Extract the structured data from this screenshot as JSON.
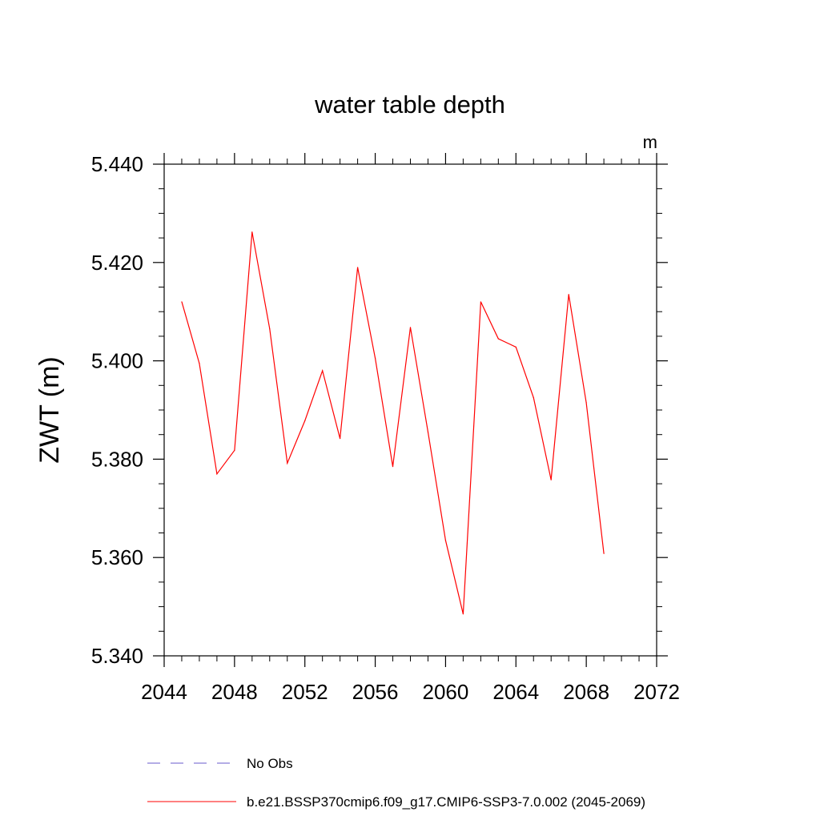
{
  "chart_data": {
    "type": "line",
    "title": "water table depth",
    "units": "m",
    "xlabel": "",
    "ylabel": "ZWT  (m)",
    "xlim": [
      2044,
      2072
    ],
    "ylim": [
      5.34,
      5.44
    ],
    "xticks": [
      2044,
      2048,
      2052,
      2056,
      2060,
      2064,
      2068,
      2072
    ],
    "xtick_labels": [
      "2044",
      "2048",
      "2052",
      "2056",
      "2060",
      "2064",
      "2068",
      "2072"
    ],
    "yticks": [
      5.34,
      5.36,
      5.38,
      5.4,
      5.42,
      5.44
    ],
    "ytick_labels": [
      "5.340",
      "5.360",
      "5.380",
      "5.400",
      "5.420",
      "5.440"
    ],
    "grid": false,
    "legend_position": "bottom",
    "series": [
      {
        "name": "b.e21.BSSP370cmip6.f09_g17.CMIP6-SSP3-7.0.002 (2045-2069)",
        "color": "#ff0000",
        "x": [
          2045,
          2046,
          2047,
          2048,
          2049,
          2050,
          2051,
          2052,
          2053,
          2054,
          2055,
          2056,
          2057,
          2058,
          2059,
          2060,
          2061,
          2062,
          2063,
          2064,
          2065,
          2066,
          2067,
          2068,
          2069
        ],
        "y": [
          5.412,
          5.3995,
          5.377,
          5.3818,
          5.4262,
          5.4065,
          5.3792,
          5.3878,
          5.398,
          5.3842,
          5.419,
          5.4005,
          5.3785,
          5.4068,
          5.3855,
          5.3635,
          5.3485,
          5.412,
          5.4045,
          5.4028,
          5.3925,
          5.3758,
          5.4135,
          5.3915,
          5.3608
        ]
      }
    ],
    "legend": [
      {
        "label": "No Obs",
        "color": "#6a5acd",
        "style": "dashed"
      },
      {
        "label": "b.e21.BSSP370cmip6.f09_g17.CMIP6-SSP3-7.0.002 (2045-2069)",
        "color": "#ff0000",
        "style": "solid"
      }
    ]
  }
}
